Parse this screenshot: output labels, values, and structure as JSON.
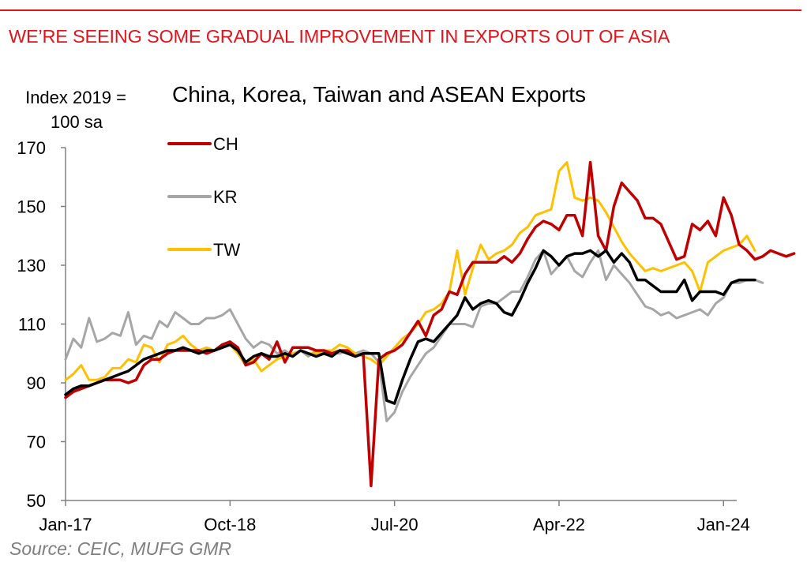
{
  "headline": "WE’RE SEEING SOME GRADUAL IMPROVEMENT IN EXPORTS OUT OF ASIA",
  "source": "Source: CEIC, MUFG GMR",
  "colors": {
    "brand_red": "#e1141c",
    "ch": "#c00000",
    "kr": "#a6a6a6",
    "tw": "#ffc000",
    "asean": "#000000",
    "source": "#7f7f7f"
  },
  "chart_data": {
    "type": "line",
    "title": "China, Korea, Taiwan and ASEAN Exports",
    "ylabel_line1": "Index 2019 =",
    "ylabel_line2": "100 sa",
    "xlabel": "",
    "ylim": [
      50,
      170
    ],
    "yticks": [
      "50",
      "70",
      "90",
      "110",
      "130",
      "150",
      "170"
    ],
    "ytick_values": [
      50,
      70,
      90,
      110,
      130,
      150,
      170
    ],
    "xtick_labels": [
      "Jan-17",
      "Oct-18",
      "Jul-20",
      "Apr-22",
      "Jan-24"
    ],
    "xtick_indices": [
      0,
      21,
      42,
      63,
      84
    ],
    "start_month": "Jan-17",
    "legend": [
      "CH",
      "KR",
      "TW"
    ],
    "series": [
      {
        "name": "CH",
        "color": "#c00000",
        "in_legend": true,
        "values": [
          85,
          87,
          88,
          89,
          90,
          91,
          91,
          91,
          90,
          91,
          96,
          98,
          98,
          100,
          101,
          101,
          101,
          101,
          100,
          101,
          103,
          104,
          102,
          96,
          97,
          100,
          98,
          104,
          97,
          102,
          102,
          102,
          101,
          101,
          100,
          101,
          101,
          99,
          100,
          55,
          98,
          100,
          101,
          103,
          107,
          111,
          106,
          113,
          115,
          121,
          120,
          127,
          131,
          131,
          131,
          131,
          133,
          131,
          134,
          139,
          143,
          145,
          144,
          142,
          147,
          147,
          140,
          165,
          140,
          135,
          150,
          158,
          155,
          152,
          146,
          146,
          144,
          138,
          132,
          133,
          144,
          142,
          145,
          140,
          153,
          147,
          137,
          135,
          132,
          133,
          135,
          134,
          133,
          134
        ]
      },
      {
        "name": "KR",
        "color": "#a6a6a6",
        "in_legend": true,
        "values": [
          98,
          105,
          102,
          112,
          104,
          105,
          107,
          106,
          114,
          103,
          106,
          105,
          111,
          109,
          114,
          112,
          110,
          110,
          112,
          112,
          113,
          115,
          110,
          105,
          102,
          104,
          103,
          100,
          101,
          99,
          101,
          99,
          101,
          100,
          100,
          100,
          101,
          100,
          101,
          100,
          97,
          77,
          80,
          87,
          92,
          96,
          100,
          102,
          106,
          110,
          110,
          110,
          109,
          116,
          117,
          117,
          119,
          121,
          121,
          126,
          132,
          135,
          127,
          130,
          133,
          128,
          126,
          131,
          135,
          125,
          130,
          127,
          124,
          120,
          116,
          115,
          113,
          114,
          112,
          113,
          114,
          115,
          113,
          117,
          119,
          124,
          124,
          125,
          125,
          124
        ]
      },
      {
        "name": "TW",
        "color": "#ffc000",
        "in_legend": true,
        "values": [
          91,
          93,
          96,
          91,
          91,
          92,
          95,
          95,
          98,
          97,
          103,
          102,
          97,
          103,
          104,
          106,
          103,
          101,
          102,
          101,
          102,
          103,
          100,
          96,
          98,
          94,
          96,
          98,
          99,
          100,
          101,
          100,
          100,
          101,
          101,
          103,
          102,
          100,
          99,
          98,
          96,
          99,
          102,
          105,
          107,
          110,
          114,
          115,
          117,
          121,
          135,
          120,
          129,
          137,
          132,
          134,
          135,
          137,
          141,
          143,
          147,
          148,
          149,
          162,
          165,
          153,
          152,
          153,
          152,
          148,
          143,
          138,
          134,
          131,
          128,
          129,
          128,
          129,
          130,
          131,
          128,
          121,
          131,
          133,
          135,
          136,
          137,
          140,
          135
        ]
      },
      {
        "name": "ASEAN",
        "color": "#000000",
        "in_legend": false,
        "values": [
          86,
          88,
          89,
          89,
          90,
          91,
          92,
          93,
          94,
          96,
          98,
          99,
          100,
          101,
          101,
          102,
          101,
          100,
          101,
          101,
          102,
          103,
          101,
          97,
          99,
          100,
          99,
          99,
          100,
          99,
          101,
          100,
          99,
          100,
          99,
          101,
          100,
          99,
          100,
          100,
          100,
          84,
          83,
          91,
          98,
          104,
          105,
          104,
          107,
          110,
          113,
          119,
          115,
          117,
          118,
          117,
          114,
          113,
          118,
          124,
          129,
          135,
          133,
          130,
          133,
          134,
          134,
          135,
          133,
          135,
          131,
          134,
          131,
          125,
          125,
          123,
          121,
          121,
          121,
          125,
          118,
          121,
          121,
          121,
          120,
          124,
          125,
          125,
          125
        ]
      }
    ]
  }
}
